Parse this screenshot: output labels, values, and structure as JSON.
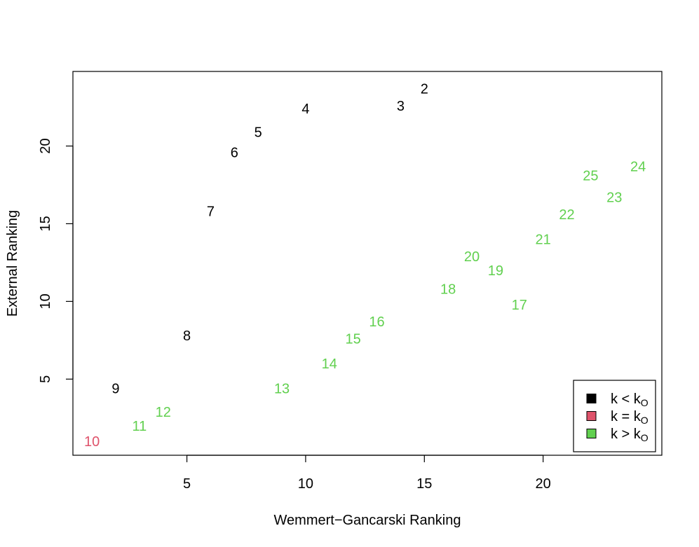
{
  "chart_data": {
    "type": "scatter",
    "title": "",
    "xlabel": "Wemmert−Gancarski Ranking",
    "ylabel": "External Ranking",
    "xlim": [
      0.2,
      25
    ],
    "ylim": [
      0.1,
      24.8
    ],
    "x_ticks": [
      5,
      10,
      15,
      20
    ],
    "y_ticks": [
      5,
      10,
      15,
      20
    ],
    "grid": false,
    "legend_position": "bottom-right",
    "legend": [
      {
        "label_base": "k < k",
        "label_sub": "O",
        "color": "#000000",
        "group": "below"
      },
      {
        "label_base": "k = k",
        "label_sub": "O",
        "color": "#DF536B",
        "group": "equal"
      },
      {
        "label_base": "k > k",
        "label_sub": "O",
        "color": "#61D04F",
        "group": "above"
      }
    ],
    "colors": {
      "below": "#000000",
      "equal": "#DF536B",
      "above": "#61D04F"
    },
    "points": [
      {
        "label": "2",
        "x": 15,
        "y": 23.7,
        "group": "below"
      },
      {
        "label": "3",
        "x": 14,
        "y": 22.6,
        "group": "below"
      },
      {
        "label": "4",
        "x": 10,
        "y": 22.4,
        "group": "below"
      },
      {
        "label": "5",
        "x": 8,
        "y": 20.9,
        "group": "below"
      },
      {
        "label": "6",
        "x": 7,
        "y": 19.6,
        "group": "below"
      },
      {
        "label": "7",
        "x": 6,
        "y": 15.8,
        "group": "below"
      },
      {
        "label": "8",
        "x": 5,
        "y": 7.8,
        "group": "below"
      },
      {
        "label": "9",
        "x": 2,
        "y": 4.4,
        "group": "below"
      },
      {
        "label": "10",
        "x": 1,
        "y": 1.0,
        "group": "equal"
      },
      {
        "label": "11",
        "x": 3,
        "y": 2.0,
        "group": "above"
      },
      {
        "label": "12",
        "x": 4,
        "y": 2.9,
        "group": "above"
      },
      {
        "label": "13",
        "x": 9,
        "y": 4.4,
        "group": "above"
      },
      {
        "label": "14",
        "x": 11,
        "y": 6.0,
        "group": "above"
      },
      {
        "label": "15",
        "x": 12,
        "y": 7.6,
        "group": "above"
      },
      {
        "label": "16",
        "x": 13,
        "y": 8.7,
        "group": "above"
      },
      {
        "label": "17",
        "x": 19,
        "y": 9.8,
        "group": "above"
      },
      {
        "label": "18",
        "x": 16,
        "y": 10.8,
        "group": "above"
      },
      {
        "label": "19",
        "x": 18,
        "y": 12.0,
        "group": "above"
      },
      {
        "label": "20",
        "x": 17,
        "y": 12.9,
        "group": "above"
      },
      {
        "label": "21",
        "x": 20,
        "y": 14.0,
        "group": "above"
      },
      {
        "label": "22",
        "x": 21,
        "y": 15.6,
        "group": "above"
      },
      {
        "label": "23",
        "x": 23,
        "y": 16.7,
        "group": "above"
      },
      {
        "label": "25",
        "x": 22,
        "y": 18.1,
        "group": "above"
      },
      {
        "label": "24",
        "x": 24,
        "y": 18.7,
        "group": "above"
      }
    ]
  }
}
